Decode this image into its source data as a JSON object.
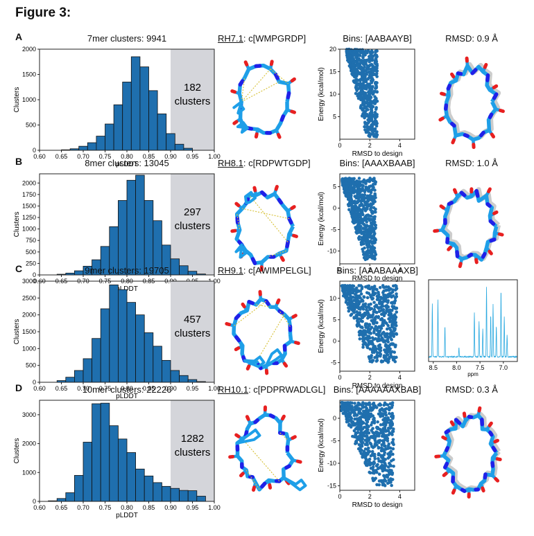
{
  "figure_title": "Figure 3:",
  "panels": [
    {
      "letter": "A",
      "hist_title": "7mer clusters: 9941",
      "shade_count": "182",
      "shade_unit": "clusters",
      "peptide_code": "RH7.1",
      "peptide_seq": ": c[WMPGRDP]",
      "bins_title": "Bins: [AABAAYB]",
      "right_title": "RMSD: 0.9 Å"
    },
    {
      "letter": "B",
      "hist_title": "8mer clusters: 13045",
      "shade_count": "297",
      "shade_unit": "clusters",
      "peptide_code": "RH8.1",
      "peptide_seq": ": c[RDPWTGDP]",
      "bins_title": "Bins: [AAAXBAAB]",
      "right_title": "RMSD: 1.0 Å"
    },
    {
      "letter": "C",
      "hist_title": "9mer clusters: 19705",
      "shade_count": "457",
      "shade_unit": "clusters",
      "peptide_code": "RH9.1",
      "peptide_seq": ": c[AWIMPELGL]",
      "bins_title": "Bins: [AAABAAAXB]",
      "right_title": ""
    },
    {
      "letter": "D",
      "hist_title": "10mer clusters: 22226",
      "shade_count": "1282",
      "shade_unit": "clusters",
      "peptide_code": "RH10.1",
      "peptide_seq": ": c[PDPRWADLGL]",
      "bins_title": "Bins: [AAAAAAXBAB]",
      "right_title": "RMSD: 0.3 Å"
    }
  ],
  "chart_data": [
    {
      "type": "bar",
      "title": "7mer clusters: 9941",
      "xlabel": "pLDDT",
      "ylabel": "Clusters",
      "xlim": [
        0.6,
        1.0
      ],
      "ylim": [
        0,
        2000
      ],
      "xticks": [
        "0.60",
        "0.65",
        "0.70",
        "0.75",
        "0.80",
        "0.85",
        "0.90",
        "0.95",
        "1.00"
      ],
      "yticks": [
        "0",
        "500",
        "1000",
        "1500",
        "2000"
      ],
      "shaded_range": [
        0.9,
        1.0
      ],
      "bin_starts": [
        0.65,
        0.67,
        0.69,
        0.71,
        0.73,
        0.75,
        0.77,
        0.79,
        0.81,
        0.83,
        0.85,
        0.87,
        0.89,
        0.91,
        0.93
      ],
      "bin_width": 0.02,
      "values": [
        10,
        30,
        80,
        150,
        280,
        520,
        900,
        1350,
        1850,
        1650,
        1180,
        720,
        330,
        120,
        40
      ]
    },
    {
      "type": "bar",
      "title": "8mer clusters: 13045",
      "xlabel": "pLDDT",
      "ylabel": "Clusters",
      "xlim": [
        0.6,
        1.0
      ],
      "ylim": [
        0,
        2200
      ],
      "xticks": [
        "0.60",
        "0.65",
        "0.70",
        "0.75",
        "0.80",
        "0.85",
        "0.90",
        "0.95",
        "1.00"
      ],
      "yticks": [
        "0",
        "250",
        "500",
        "750",
        "1000",
        "1250",
        "1500",
        "1750",
        "2000"
      ],
      "shaded_range": [
        0.9,
        1.0
      ],
      "bin_starts": [
        0.64,
        0.66,
        0.68,
        0.7,
        0.72,
        0.74,
        0.76,
        0.78,
        0.8,
        0.82,
        0.84,
        0.86,
        0.88,
        0.9,
        0.92,
        0.94,
        0.96
      ],
      "bin_width": 0.02,
      "values": [
        15,
        40,
        90,
        190,
        330,
        620,
        1050,
        1620,
        2060,
        2170,
        1620,
        1180,
        650,
        350,
        200,
        80,
        20
      ]
    },
    {
      "type": "bar",
      "title": "9mer clusters: 19705",
      "xlabel": "pLDDT",
      "ylabel": "Clusters",
      "xlim": [
        0.6,
        1.0
      ],
      "ylim": [
        0,
        3000
      ],
      "xticks": [
        "0.60",
        "0.65",
        "0.70",
        "0.75",
        "0.80",
        "0.85",
        "0.90",
        "0.95",
        "1.00"
      ],
      "yticks": [
        "0",
        "500",
        "1000",
        "1500",
        "2000",
        "2500",
        "3000"
      ],
      "shaded_range": [
        0.9,
        1.0
      ],
      "bin_starts": [
        0.64,
        0.66,
        0.68,
        0.7,
        0.72,
        0.74,
        0.76,
        0.78,
        0.8,
        0.82,
        0.84,
        0.86,
        0.88,
        0.9,
        0.92,
        0.94,
        0.96
      ],
      "bin_width": 0.02,
      "values": [
        50,
        150,
        350,
        700,
        1300,
        2180,
        2890,
        2750,
        2370,
        2000,
        1470,
        1070,
        650,
        350,
        200,
        80,
        20
      ]
    },
    {
      "type": "bar",
      "title": "10mer clusters: 22226",
      "xlabel": "pLDDT",
      "ylabel": "Clusters",
      "xlim": [
        0.6,
        1.0
      ],
      "ylim": [
        0,
        3500
      ],
      "xticks": [
        "0.60",
        "0.65",
        "0.70",
        "0.75",
        "0.80",
        "0.85",
        "0.90",
        "0.95",
        "1.00"
      ],
      "yticks": [
        "0",
        "1000",
        "2000",
        "3000"
      ],
      "shaded_range": [
        0.9,
        1.0
      ],
      "bin_starts": [
        0.62,
        0.64,
        0.66,
        0.68,
        0.7,
        0.72,
        0.74,
        0.76,
        0.78,
        0.8,
        0.82,
        0.84,
        0.86,
        0.88,
        0.9,
        0.92,
        0.94,
        0.96
      ],
      "bin_width": 0.02,
      "values": [
        20,
        100,
        300,
        900,
        2050,
        3380,
        3400,
        2620,
        2160,
        1690,
        1120,
        880,
        650,
        520,
        450,
        380,
        370,
        180
      ]
    },
    {
      "type": "scatter",
      "xlabel": "RMSD to design",
      "ylabel": "Energy (kcal/mol)",
      "xlim": [
        0,
        5
      ],
      "ylim": [
        0,
        20
      ],
      "xticks": [
        "0",
        "2",
        "4"
      ],
      "yticks": [
        "5",
        "10",
        "15",
        "20"
      ],
      "cloud": {
        "x_min": 0.45,
        "x_max": 2.5,
        "y_min": 0.5,
        "y_max": 20,
        "slope": 13.0
      }
    },
    {
      "type": "scatter",
      "xlabel": "RMSD to design",
      "ylabel": "Energy (kcal/mol)",
      "xlim": [
        0,
        5
      ],
      "ylim": [
        -13,
        8
      ],
      "xticks": [
        "0",
        "2",
        "4"
      ],
      "yticks": [
        "-10",
        "-5",
        "0",
        "5"
      ],
      "cloud": {
        "x_min": 0.15,
        "x_max": 2.4,
        "y_min": -12,
        "y_max": 7,
        "slope": 12.0
      }
    },
    {
      "type": "scatter",
      "xlabel": "RMSD to design",
      "ylabel": "Energy (kcal/mol)",
      "xlim": [
        0,
        5
      ],
      "ylim": [
        -7,
        14
      ],
      "xticks": [
        "0",
        "2",
        "4"
      ],
      "yticks": [
        "-5",
        "0",
        "5",
        "10"
      ],
      "cloud": {
        "x_min": 0.1,
        "x_max": 3.8,
        "y_min": -5,
        "y_max": 13,
        "slope": 9.0
      }
    },
    {
      "type": "scatter",
      "xlabel": "RMSD to design",
      "ylabel": "Energy (kcal/mol)",
      "xlim": [
        0,
        5
      ],
      "ylim": [
        -16,
        4
      ],
      "xticks": [
        "0",
        "2",
        "4"
      ],
      "yticks": [
        "-15",
        "-10",
        "-5",
        "0"
      ],
      "cloud": {
        "x_min": 0.1,
        "x_max": 3.6,
        "y_min": -15,
        "y_max": 3.5,
        "slope": 8.0
      }
    },
    {
      "type": "line",
      "xlabel": "ppm",
      "xlim": [
        8.6,
        6.7
      ],
      "xticks": [
        "8.5",
        "8.0",
        "7.5",
        "7.0"
      ],
      "peaks": [
        [
          8.52,
          0.72
        ],
        [
          8.4,
          0.78
        ],
        [
          8.25,
          0.42
        ],
        [
          7.95,
          0.12
        ],
        [
          7.62,
          0.6
        ],
        [
          7.52,
          0.48
        ],
        [
          7.44,
          0.38
        ],
        [
          7.36,
          0.95
        ],
        [
          7.27,
          0.58
        ],
        [
          7.22,
          0.72
        ],
        [
          7.15,
          0.42
        ],
        [
          7.05,
          0.92
        ],
        [
          6.98,
          0.55
        ],
        [
          6.92,
          0.3
        ]
      ]
    }
  ],
  "colors": {
    "bar": "#1f6fae",
    "bar_edge": "#111111",
    "shade": "#d4d5da",
    "scatter": "#1f6fae",
    "nmr": "#2aa9e0",
    "pep_c": "#1e9fe8",
    "pep_n": "#2020e8",
    "pep_o": "#e82020",
    "pep_gray": "#cccccc",
    "hbond": "#d9c440"
  }
}
